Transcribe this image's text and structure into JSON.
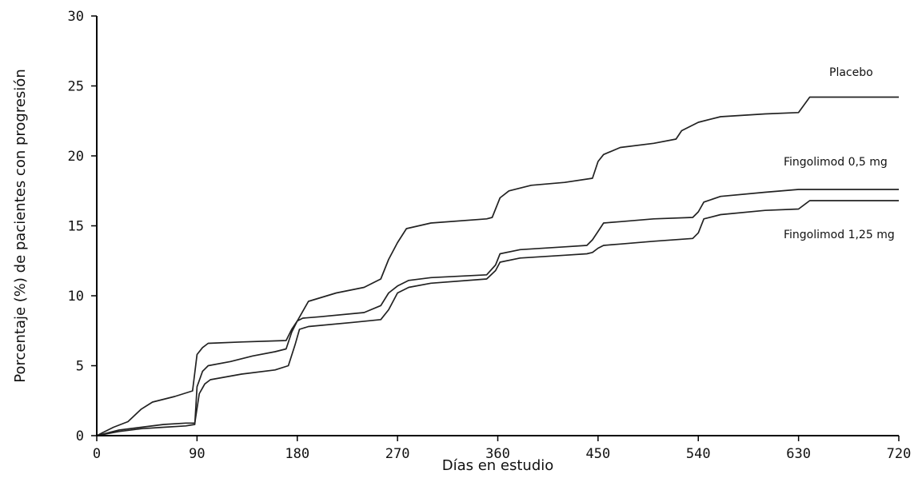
{
  "chart_data": {
    "type": "line",
    "title": "",
    "xlabel": "Días en estudio",
    "ylabel": "Porcentaje (%) de pacientes con progresión",
    "xlim": [
      0,
      720
    ],
    "ylim": [
      0,
      30
    ],
    "xticks": [
      0,
      90,
      180,
      270,
      360,
      450,
      540,
      630,
      720
    ],
    "yticks": [
      0,
      5,
      10,
      15,
      20,
      25,
      30
    ],
    "grid": false,
    "legend": "none",
    "series": [
      {
        "name": "Placebo",
        "x": [
          0,
          15,
          28,
          40,
          50,
          70,
          86,
          90,
          95,
          100,
          130,
          170,
          175,
          180,
          190,
          215,
          240,
          255,
          262,
          270,
          278,
          300,
          350,
          355,
          358,
          362,
          370,
          390,
          420,
          445,
          450,
          455,
          470,
          500,
          520,
          525,
          540,
          560,
          600,
          630,
          640,
          720
        ],
        "y": [
          0,
          0.6,
          1,
          1.9,
          2.4,
          2.8,
          3.2,
          5.8,
          6.3,
          6.6,
          6.7,
          6.8,
          7.6,
          8.2,
          9.6,
          10.2,
          10.6,
          11.2,
          12.6,
          13.8,
          14.8,
          15.2,
          15.5,
          15.6,
          16.2,
          17,
          17.5,
          17.9,
          18.1,
          18.4,
          19.6,
          20.1,
          20.6,
          20.9,
          21.2,
          21.8,
          22.4,
          22.8,
          23,
          23.1,
          24.2,
          24.2
        ]
      },
      {
        "name": "Fingolimod 0,5 mg",
        "x": [
          0,
          20,
          40,
          60,
          80,
          88,
          90,
          95,
          100,
          120,
          140,
          160,
          170,
          175,
          180,
          185,
          200,
          240,
          255,
          262,
          270,
          280,
          300,
          350,
          358,
          362,
          380,
          420,
          440,
          445,
          450,
          455,
          470,
          500,
          535,
          540,
          545,
          560,
          600,
          630,
          720
        ],
        "y": [
          0,
          0.3,
          0.5,
          0.6,
          0.7,
          0.8,
          3.5,
          4.6,
          5,
          5.3,
          5.7,
          6,
          6.2,
          7.4,
          8.2,
          8.4,
          8.5,
          8.8,
          9.3,
          10.2,
          10.7,
          11.1,
          11.3,
          11.5,
          12.2,
          13,
          13.3,
          13.5,
          13.6,
          14,
          14.6,
          15.2,
          15.3,
          15.5,
          15.6,
          16,
          16.7,
          17.1,
          17.4,
          17.6,
          17.6
        ]
      },
      {
        "name": "Fingolimod 1,25 mg",
        "x": [
          0,
          20,
          40,
          60,
          80,
          88,
          92,
          97,
          102,
          130,
          160,
          172,
          178,
          182,
          190,
          230,
          255,
          262,
          270,
          280,
          300,
          350,
          358,
          362,
          380,
          420,
          440,
          445,
          450,
          455,
          470,
          500,
          535,
          540,
          545,
          560,
          600,
          630,
          640,
          720
        ],
        "y": [
          0,
          0.4,
          0.6,
          0.8,
          0.9,
          0.9,
          3,
          3.7,
          4,
          4.4,
          4.7,
          5,
          6.5,
          7.6,
          7.8,
          8.1,
          8.3,
          9,
          10.2,
          10.6,
          10.9,
          11.2,
          11.8,
          12.4,
          12.7,
          12.9,
          13,
          13.1,
          13.4,
          13.6,
          13.7,
          13.9,
          14.1,
          14.5,
          15.5,
          15.8,
          16.1,
          16.2,
          16.8,
          16.8
        ]
      }
    ]
  }
}
